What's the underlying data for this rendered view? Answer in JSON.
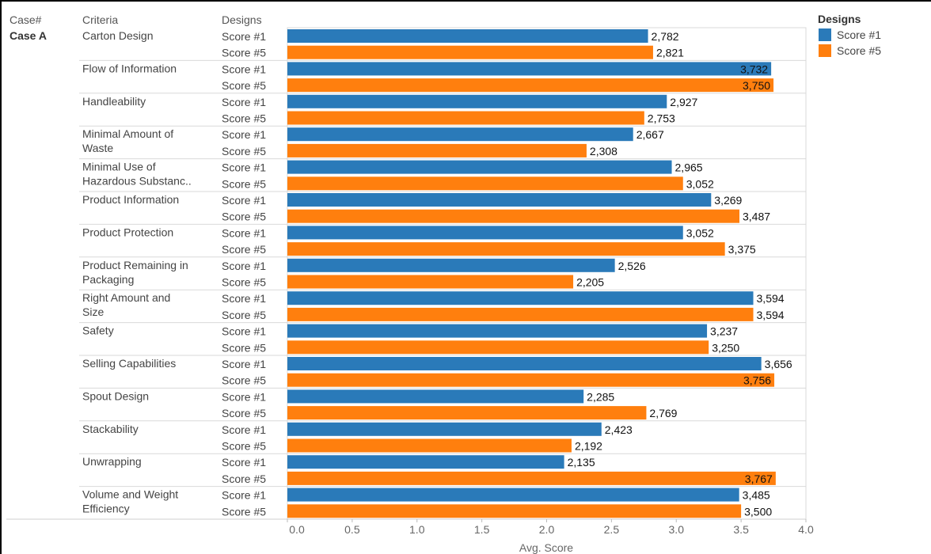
{
  "headers": {
    "case": "Case#",
    "criteria": "Criteria",
    "designs": "Designs"
  },
  "case_label": "Case A",
  "legend": {
    "title": "Designs",
    "items": [
      {
        "label": "Score #1",
        "color": "#2a7ab9"
      },
      {
        "label": "Score #5",
        "color": "#ff7f0e"
      }
    ]
  },
  "chart_data": {
    "type": "bar",
    "orientation": "horizontal",
    "xlabel": "Avg. Score",
    "xlim": [
      0,
      4.0
    ],
    "x_ticks": [
      "0.0",
      "0.5",
      "1.0",
      "1.5",
      "2.0",
      "2.5",
      "3.0",
      "3.5",
      "4.0"
    ],
    "grid": false,
    "legend_position": "top-right",
    "categories": [
      "Carton Design",
      "Flow of Information",
      "Handleability",
      "Minimal Amount of Waste",
      "Minimal Use of Hazardous Substanc..",
      "Product Information",
      "Product Protection",
      "Product Remaining in Packaging",
      "Right Amount and Size",
      "Safety",
      "Selling Capabilities",
      "Spout Design",
      "Stackability",
      "Unwrapping",
      "Volume and Weight Efficiency"
    ],
    "series": [
      {
        "name": "Score #1",
        "color": "#2a7ab9",
        "values": [
          2.782,
          3.732,
          2.927,
          2.667,
          2.965,
          3.269,
          3.052,
          2.526,
          3.594,
          3.237,
          3.656,
          2.285,
          2.423,
          2.135,
          3.485
        ],
        "labels": [
          "2,782",
          "3,732",
          "2,927",
          "2,667",
          "2,965",
          "3,269",
          "3,052",
          "2,526",
          "3,594",
          "3,237",
          "3,656",
          "2,285",
          "2,423",
          "2,135",
          "3,485"
        ]
      },
      {
        "name": "Score #5",
        "color": "#ff7f0e",
        "values": [
          2.821,
          3.75,
          2.753,
          2.308,
          3.052,
          3.487,
          3.375,
          2.205,
          3.594,
          3.25,
          3.756,
          2.769,
          2.192,
          3.767,
          3.5
        ],
        "labels": [
          "2,821",
          "3,750",
          "2,753",
          "2,308",
          "3,052",
          "3,487",
          "3,375",
          "2,205",
          "3,594",
          "3,250",
          "3,756",
          "2,769",
          "2,192",
          "3,767",
          "3,500"
        ]
      }
    ]
  }
}
